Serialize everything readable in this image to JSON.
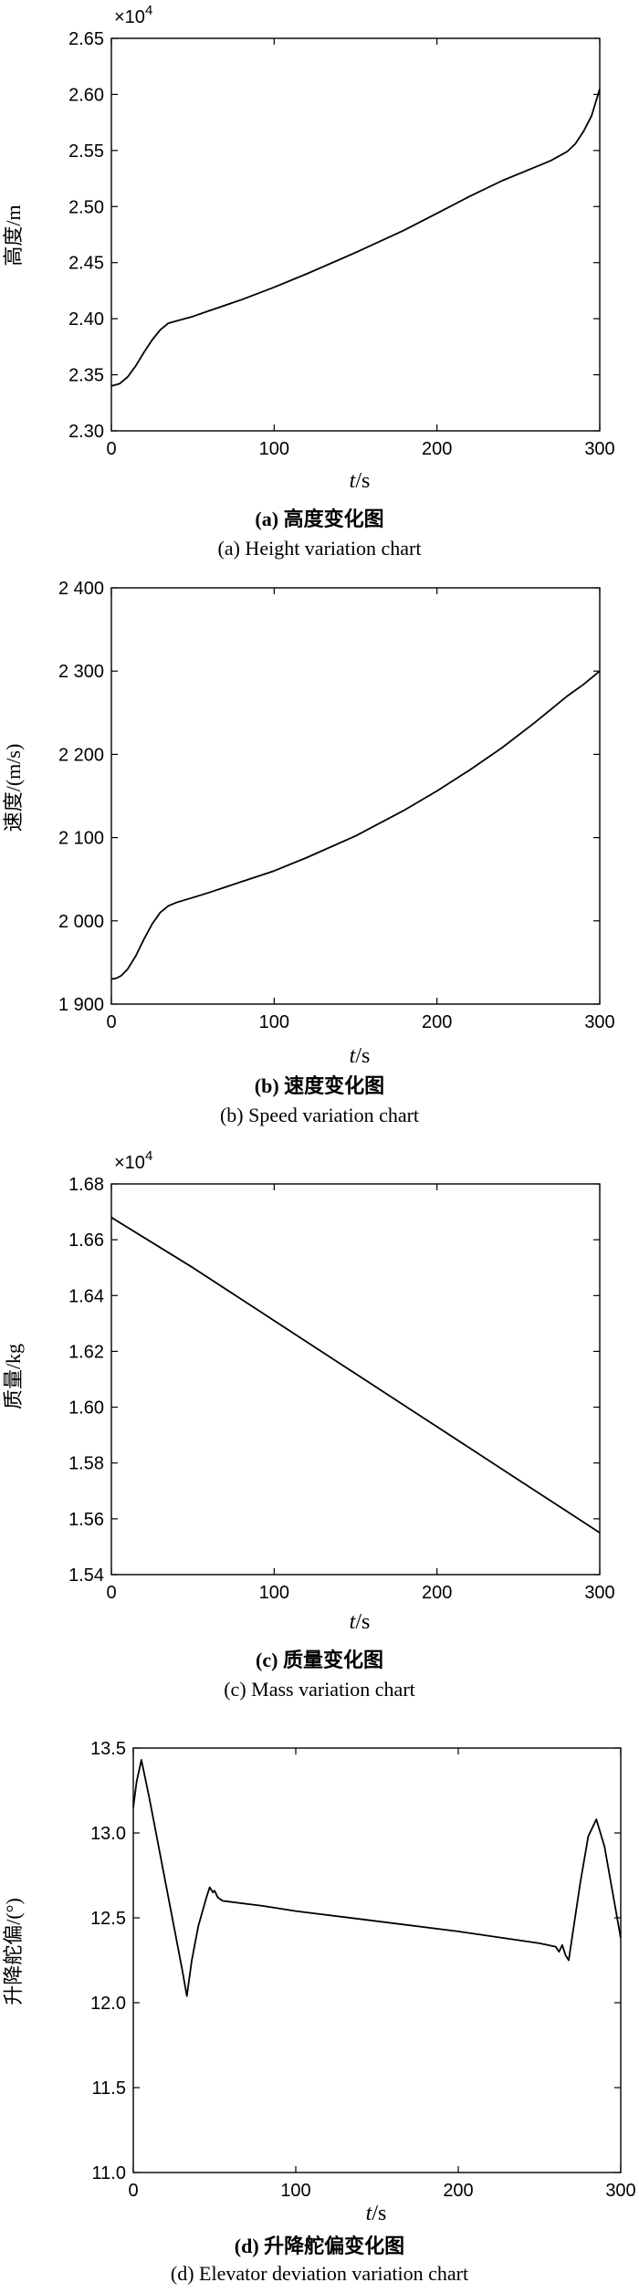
{
  "chart_data": [
    {
      "type": "line",
      "ylabel": "高度/m",
      "xlabel": "t/s",
      "exponent_label": "×10",
      "exponent_power": "4",
      "caption_cn": "(a) 高度变化图",
      "caption_en": "(a) Height variation chart",
      "xlim": [
        0,
        300
      ],
      "ylim": [
        2.3,
        2.65
      ],
      "xticks": [
        0,
        100,
        200,
        300
      ],
      "xtick_labels": [
        "0",
        "100",
        "200",
        "300"
      ],
      "yticks": [
        2.3,
        2.35,
        2.4,
        2.45,
        2.5,
        2.55,
        2.6,
        2.65
      ],
      "ytick_labels": [
        "2.30",
        "2.35",
        "2.40",
        "2.45",
        "2.50",
        "2.55",
        "2.60",
        "2.65"
      ],
      "grid": false,
      "series": [
        {
          "x": [
            0,
            5,
            10,
            15,
            20,
            25,
            30,
            35,
            40,
            50,
            60,
            80,
            100,
            120,
            150,
            180,
            200,
            220,
            240,
            260,
            270,
            280,
            285,
            290,
            295,
            300
          ],
          "y": [
            2.34,
            2.342,
            2.348,
            2.358,
            2.37,
            2.381,
            2.39,
            2.396,
            2.398,
            2.402,
            2.407,
            2.417,
            2.428,
            2.44,
            2.459,
            2.479,
            2.494,
            2.509,
            2.523,
            2.535,
            2.541,
            2.549,
            2.556,
            2.567,
            2.581,
            2.605
          ]
        }
      ]
    },
    {
      "type": "line",
      "ylabel": "速度/(m/s)",
      "xlabel": "t/s",
      "caption_cn": "(b) 速度变化图",
      "caption_en": "(b) Speed variation chart",
      "xlim": [
        0,
        300
      ],
      "ylim": [
        1900,
        2400
      ],
      "xticks": [
        0,
        100,
        200,
        300
      ],
      "xtick_labels": [
        "0",
        "100",
        "200",
        "300"
      ],
      "yticks": [
        1900,
        2000,
        2100,
        2200,
        2300,
        2400
      ],
      "ytick_labels": [
        "1 900",
        "2 000",
        "2 100",
        "2 200",
        "2 300",
        "2 400"
      ],
      "grid": false,
      "series": [
        {
          "x": [
            0,
            3,
            6,
            10,
            15,
            20,
            25,
            30,
            35,
            40,
            50,
            60,
            80,
            100,
            120,
            150,
            180,
            200,
            220,
            240,
            260,
            270,
            280,
            290,
            300
          ],
          "y": [
            1930,
            1931,
            1934,
            1942,
            1958,
            1978,
            1996,
            2010,
            2018,
            2022,
            2028,
            2034,
            2047,
            2060,
            2076,
            2102,
            2133,
            2156,
            2181,
            2208,
            2238,
            2254,
            2270,
            2284,
            2300
          ]
        }
      ]
    },
    {
      "type": "line",
      "ylabel": "质量/kg",
      "xlabel": "t/s",
      "exponent_label": "×10",
      "exponent_power": "4",
      "caption_cn": "(c) 质量变化图",
      "caption_en": "(c) Mass variation chart",
      "xlim": [
        0,
        300
      ],
      "ylim": [
        1.54,
        1.68
      ],
      "xticks": [
        0,
        100,
        200,
        300
      ],
      "xtick_labels": [
        "0",
        "100",
        "200",
        "300"
      ],
      "yticks": [
        1.54,
        1.56,
        1.58,
        1.6,
        1.62,
        1.64,
        1.66,
        1.68
      ],
      "ytick_labels": [
        "1.54",
        "1.56",
        "1.58",
        "1.60",
        "1.62",
        "1.64",
        "1.66",
        "1.68"
      ],
      "grid": false,
      "series": [
        {
          "x": [
            0,
            50,
            100,
            150,
            200,
            250,
            300
          ],
          "y": [
            1.668,
            1.65,
            1.631,
            1.612,
            1.593,
            1.574,
            1.555
          ]
        }
      ]
    },
    {
      "type": "line",
      "ylabel": "升降舵偏/(°)",
      "xlabel": "t/s",
      "caption_cn": "(d) 升降舵偏变化图",
      "caption_en": "(d) Elevator deviation variation chart",
      "xlim": [
        0,
        300
      ],
      "ylim": [
        11.0,
        13.5
      ],
      "xticks": [
        0,
        100,
        200,
        300
      ],
      "xtick_labels": [
        "0",
        "100",
        "200",
        "300"
      ],
      "yticks": [
        11.0,
        11.5,
        12.0,
        12.5,
        13.0,
        13.5
      ],
      "ytick_labels": [
        "11.0",
        "11.5",
        "12.0",
        "12.5",
        "13.0",
        "13.5"
      ],
      "grid": false,
      "series": [
        {
          "x": [
            0,
            2,
            5,
            10,
            20,
            30,
            33,
            36,
            40,
            45,
            47,
            49,
            50,
            52,
            55,
            80,
            100,
            150,
            200,
            250,
            260,
            262,
            264,
            265,
            266,
            268,
            270,
            275,
            280,
            285,
            290,
            295,
            300
          ],
          "y": [
            13.15,
            13.3,
            13.43,
            13.2,
            12.7,
            12.2,
            12.04,
            12.25,
            12.45,
            12.62,
            12.68,
            12.65,
            12.66,
            12.62,
            12.6,
            12.57,
            12.54,
            12.48,
            12.42,
            12.35,
            12.33,
            12.3,
            12.34,
            12.31,
            12.28,
            12.25,
            12.38,
            12.7,
            12.98,
            13.08,
            12.92,
            12.65,
            12.38
          ]
        }
      ]
    }
  ]
}
